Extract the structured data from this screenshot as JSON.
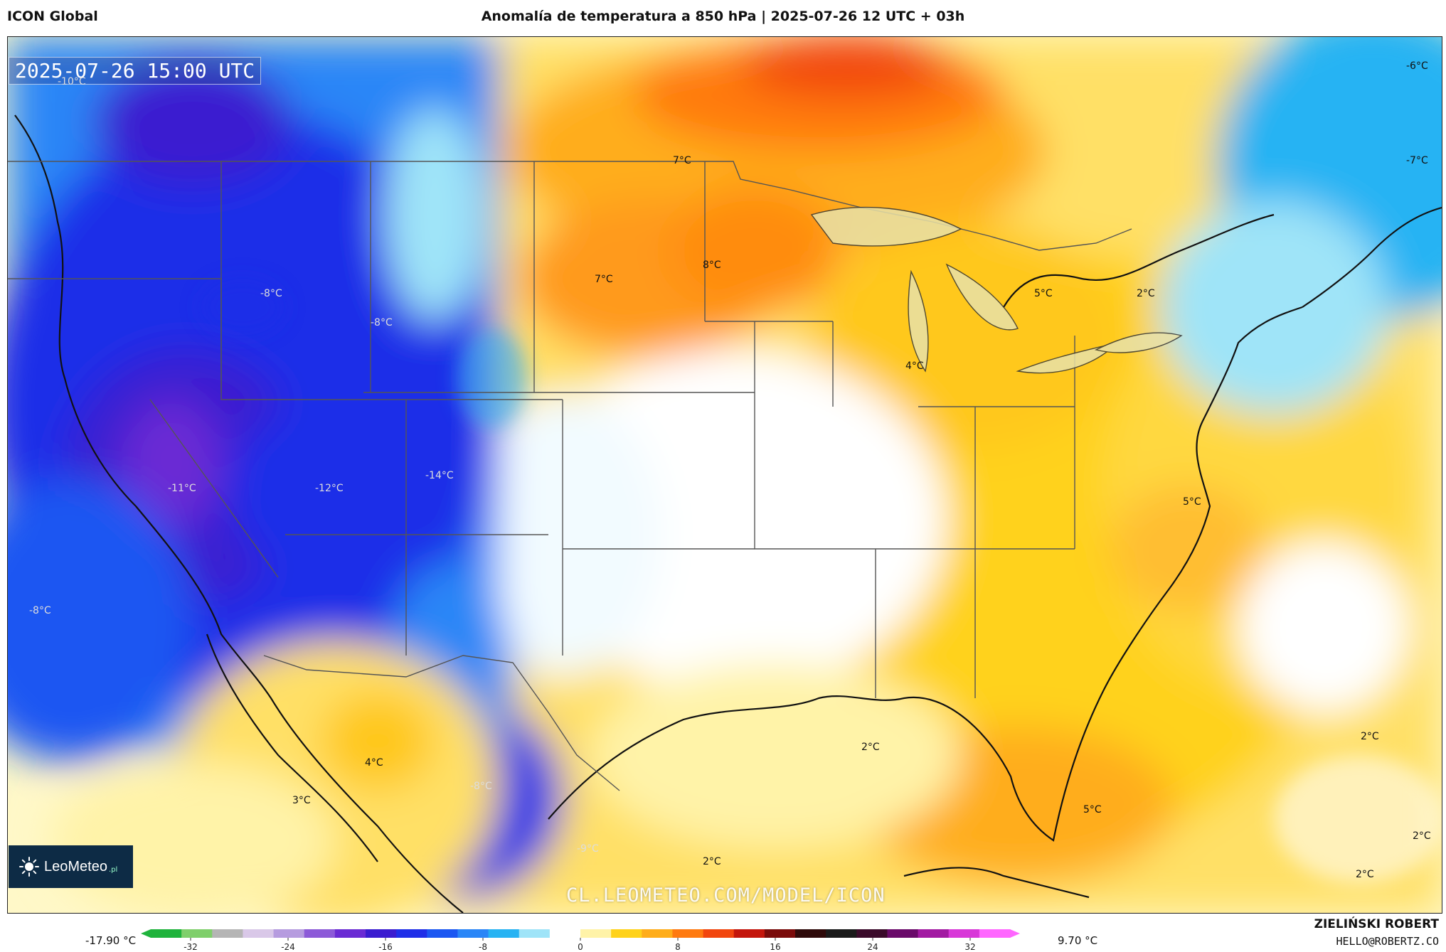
{
  "header": {
    "model": "ICON Global",
    "title": "Anomalía de temperatura a 850 hPa | 2025-07-26 12 UTC + 03h"
  },
  "map": {
    "timestamp": "2025-07-26 15:00 UTC",
    "labels": [
      "-10°C",
      "-8°C",
      "-8°C",
      "-11°C",
      "-12°C",
      "-14°C",
      "-8°C",
      "7°C",
      "7°C",
      "8°C",
      "5°C",
      "2°C",
      "4°C",
      "-6°C",
      "-7°C",
      "5°C",
      "2°C",
      "4°C",
      "3°C",
      "-8°C",
      "-9°C",
      "2°C",
      "5°C",
      "2°C",
      "2°C",
      "2°C"
    ],
    "watermark": "CL.LEOMETEO.COM/MODEL/ICON",
    "logo_text": "LeoMeteo",
    "logo_suffix": ".pl"
  },
  "legend": {
    "min_label": "-17.90 °C",
    "max_label": "9.70 °C",
    "ticks": [
      "-32",
      "-24",
      "-16",
      "-8",
      "0",
      "8",
      "16",
      "24",
      "32"
    ],
    "colors": [
      "#1fb33c",
      "#7fcf6b",
      "#b5b5b5",
      "#d9c8e8",
      "#b69cdf",
      "#8c5ad8",
      "#6a2bd4",
      "#3a1cd0",
      "#1f2ee8",
      "#1b57f2",
      "#2a86f7",
      "#27b3f3",
      "#9fe4f8",
      "#ffffff",
      "#fff3a8",
      "#ffd21a",
      "#ffad1a",
      "#ff7a10",
      "#f2460e",
      "#c4160c",
      "#7a0b0a",
      "#2e0a0a",
      "#1a1a1a",
      "#3a0a2a",
      "#6a0a6a",
      "#a21aa2",
      "#d838d8",
      "#ff66ff"
    ]
  },
  "credits": {
    "name": "ZIELIŃSKI ROBERT",
    "email": "HELLO@ROBERTZ.CO"
  }
}
